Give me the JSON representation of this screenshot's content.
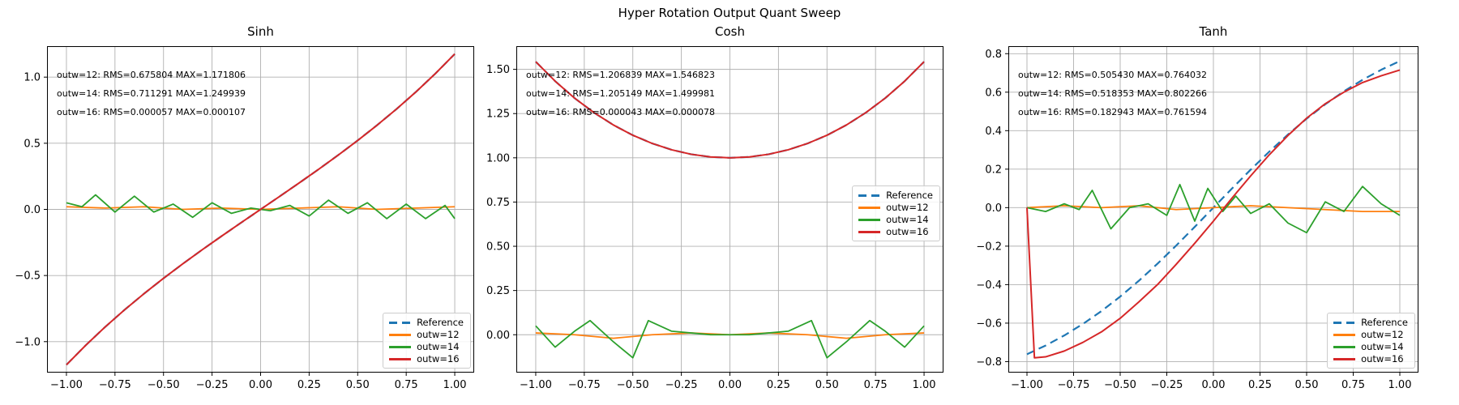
{
  "figure": {
    "suptitle": "Hyper Rotation Output Quant Sweep"
  },
  "colors": {
    "background": "#ffffff",
    "grid": "#b0b0b0",
    "axis": "#000000",
    "reference_blue": "#1f77b4",
    "outw12_orange": "#ff7f0e",
    "outw14_green": "#2ca02c",
    "outw16_red": "#d62728"
  },
  "chart_data": [
    {
      "type": "line",
      "title": "Sinh",
      "grid": true,
      "xlim": [
        -1.1,
        1.1
      ],
      "ylim": [
        -1.234,
        1.234
      ],
      "xticks": {
        "values": [
          -1.0,
          -0.75,
          -0.5,
          -0.25,
          0.0,
          0.25,
          0.5,
          0.75,
          1.0
        ],
        "labels": [
          "−1.00",
          "−0.75",
          "−0.50",
          "−0.25",
          "0.00",
          "0.25",
          "0.50",
          "0.75",
          "1.00"
        ]
      },
      "yticks": {
        "values": [
          -1.0,
          -0.5,
          0.0,
          0.5,
          1.0
        ],
        "labels": [
          "−1.0",
          "−0.5",
          "0.0",
          "0.5",
          "1.0"
        ]
      },
      "legend_loc": "lower right",
      "annotations": [
        "outw=12: RMS=0.675804 MAX=1.171806",
        "outw=14: RMS=0.711291 MAX=1.249939",
        "outw=16: RMS=0.000057 MAX=0.000107"
      ],
      "series": [
        {
          "name": "Reference",
          "color": "#1f77b4",
          "dashed": true,
          "width": 2.2,
          "x": [
            -1.0,
            -0.9,
            -0.8,
            -0.7,
            -0.6,
            -0.5,
            -0.4,
            -0.3,
            -0.2,
            -0.1,
            0.0,
            0.1,
            0.2,
            0.3,
            0.4,
            0.5,
            0.6,
            0.7,
            0.8,
            0.9,
            1.0
          ],
          "y": [
            -1.1752,
            -1.0265,
            -0.8881,
            -0.7586,
            -0.6367,
            -0.5211,
            -0.4108,
            -0.3045,
            -0.2013,
            -0.1002,
            0.0,
            0.1002,
            0.2013,
            0.3045,
            0.4108,
            0.5211,
            0.6367,
            0.7586,
            0.8881,
            1.0265,
            1.1752
          ]
        },
        {
          "name": "outw=12",
          "color": "#ff7f0e",
          "dashed": false,
          "width": 1.8,
          "x": [
            -1.0,
            -0.8,
            -0.6,
            -0.4,
            -0.2,
            0.0,
            0.2,
            0.4,
            0.6,
            0.8,
            1.0
          ],
          "y": [
            0.02,
            0.01,
            0.02,
            0.0,
            0.01,
            0.0,
            0.01,
            0.02,
            0.0,
            0.01,
            0.02
          ]
        },
        {
          "name": "outw=14",
          "color": "#2ca02c",
          "dashed": false,
          "width": 1.8,
          "x": [
            -1.0,
            -0.92,
            -0.85,
            -0.75,
            -0.65,
            -0.55,
            -0.45,
            -0.35,
            -0.25,
            -0.15,
            -0.05,
            0.05,
            0.15,
            0.25,
            0.35,
            0.45,
            0.55,
            0.65,
            0.75,
            0.85,
            0.95,
            1.0
          ],
          "y": [
            0.05,
            0.02,
            0.11,
            -0.02,
            0.1,
            -0.02,
            0.04,
            -0.06,
            0.05,
            -0.03,
            0.01,
            -0.01,
            0.03,
            -0.05,
            0.07,
            -0.03,
            0.05,
            -0.07,
            0.04,
            -0.07,
            0.03,
            -0.07
          ]
        },
        {
          "name": "outw=16",
          "color": "#d62728",
          "dashed": false,
          "width": 2.0,
          "x": [
            -1.0,
            -0.9,
            -0.8,
            -0.7,
            -0.6,
            -0.5,
            -0.4,
            -0.3,
            -0.2,
            -0.1,
            0.0,
            0.1,
            0.2,
            0.3,
            0.4,
            0.5,
            0.6,
            0.7,
            0.8,
            0.9,
            1.0
          ],
          "y": [
            -1.1752,
            -1.0265,
            -0.8881,
            -0.7586,
            -0.6367,
            -0.5211,
            -0.4108,
            -0.3045,
            -0.2013,
            -0.1002,
            0.0,
            0.1002,
            0.2013,
            0.3045,
            0.4108,
            0.5211,
            0.6367,
            0.7586,
            0.8881,
            1.0265,
            1.1752
          ]
        }
      ]
    },
    {
      "type": "line",
      "title": "Cosh",
      "grid": true,
      "xlim": [
        -1.1,
        1.1
      ],
      "ylim": [
        -0.214,
        1.631
      ],
      "xticks": {
        "values": [
          -1.0,
          -0.75,
          -0.5,
          -0.25,
          0.0,
          0.25,
          0.5,
          0.75,
          1.0
        ],
        "labels": [
          "−1.00",
          "−0.75",
          "−0.50",
          "−0.25",
          "0.00",
          "0.25",
          "0.50",
          "0.75",
          "1.00"
        ]
      },
      "yticks": {
        "values": [
          0.0,
          0.25,
          0.5,
          0.75,
          1.0,
          1.25,
          1.5
        ],
        "labels": [
          "0.00",
          "0.25",
          "0.50",
          "0.75",
          "1.00",
          "1.25",
          "1.50"
        ]
      },
      "legend_loc": "center right",
      "annotations": [
        "outw=12: RMS=1.206839 MAX=1.546823",
        "outw=14: RMS=1.205149 MAX=1.499981",
        "outw=16: RMS=0.000043 MAX=0.000078"
      ],
      "series": [
        {
          "name": "Reference",
          "color": "#1f77b4",
          "dashed": true,
          "width": 2.2,
          "x": [
            -1.0,
            -0.9,
            -0.8,
            -0.7,
            -0.6,
            -0.5,
            -0.4,
            -0.3,
            -0.2,
            -0.1,
            0.0,
            0.1,
            0.2,
            0.3,
            0.4,
            0.5,
            0.6,
            0.7,
            0.8,
            0.9,
            1.0
          ],
          "y": [
            1.5431,
            1.4331,
            1.3374,
            1.2552,
            1.1855,
            1.1276,
            1.0811,
            1.0453,
            1.0201,
            1.005,
            1.0,
            1.005,
            1.0201,
            1.0453,
            1.0811,
            1.1276,
            1.1855,
            1.2552,
            1.3374,
            1.4331,
            1.5431
          ]
        },
        {
          "name": "outw=12",
          "color": "#ff7f0e",
          "dashed": false,
          "width": 1.8,
          "x": [
            -1.0,
            -0.8,
            -0.6,
            -0.4,
            -0.2,
            0.0,
            0.2,
            0.4,
            0.6,
            0.8,
            1.0
          ],
          "y": [
            0.01,
            0.0,
            -0.02,
            0.0,
            0.01,
            0.0,
            0.01,
            0.0,
            -0.02,
            0.0,
            0.01
          ]
        },
        {
          "name": "outw=14",
          "color": "#2ca02c",
          "dashed": false,
          "width": 1.8,
          "x": [
            -1.0,
            -0.9,
            -0.8,
            -0.72,
            -0.6,
            -0.5,
            -0.42,
            -0.3,
            -0.2,
            -0.1,
            0.0,
            0.1,
            0.2,
            0.3,
            0.42,
            0.5,
            0.6,
            0.72,
            0.8,
            0.9,
            1.0
          ],
          "y": [
            0.05,
            -0.07,
            0.02,
            0.08,
            -0.04,
            -0.13,
            0.08,
            0.02,
            0.01,
            0.0,
            0.0,
            0.0,
            0.01,
            0.02,
            0.08,
            -0.13,
            -0.04,
            0.08,
            0.02,
            -0.07,
            0.05
          ]
        },
        {
          "name": "outw=16",
          "color": "#d62728",
          "dashed": false,
          "width": 2.0,
          "x": [
            -1.0,
            -0.9,
            -0.8,
            -0.7,
            -0.6,
            -0.5,
            -0.4,
            -0.3,
            -0.2,
            -0.1,
            0.0,
            0.1,
            0.2,
            0.3,
            0.4,
            0.5,
            0.6,
            0.7,
            0.8,
            0.9,
            1.0
          ],
          "y": [
            1.5431,
            1.4331,
            1.3374,
            1.2552,
            1.1855,
            1.1276,
            1.0811,
            1.0453,
            1.0201,
            1.005,
            1.0,
            1.005,
            1.0201,
            1.0453,
            1.0811,
            1.1276,
            1.1855,
            1.2552,
            1.3374,
            1.4331,
            1.5431
          ]
        }
      ]
    },
    {
      "type": "line",
      "title": "Tanh",
      "grid": true,
      "xlim": [
        -1.1,
        1.1
      ],
      "ylim": [
        -0.857,
        0.839
      ],
      "xticks": {
        "values": [
          -1.0,
          -0.75,
          -0.5,
          -0.25,
          0.0,
          0.25,
          0.5,
          0.75,
          1.0
        ],
        "labels": [
          "−1.00",
          "−0.75",
          "−0.50",
          "−0.25",
          "0.00",
          "0.25",
          "0.50",
          "0.75",
          "1.00"
        ]
      },
      "yticks": {
        "values": [
          -0.8,
          -0.6,
          -0.4,
          -0.2,
          0.0,
          0.2,
          0.4,
          0.6,
          0.8
        ],
        "labels": [
          "−0.8",
          "−0.6",
          "−0.4",
          "−0.2",
          "0.0",
          "0.2",
          "0.4",
          "0.6",
          "0.8"
        ]
      },
      "legend_loc": "lower right",
      "annotations": [
        "outw=12: RMS=0.505430 MAX=0.764032",
        "outw=14: RMS=0.518353 MAX=0.802266",
        "outw=16: RMS=0.182943 MAX=0.761594"
      ],
      "series": [
        {
          "name": "Reference",
          "color": "#1f77b4",
          "dashed": true,
          "width": 2.2,
          "x": [
            -1.0,
            -0.9,
            -0.8,
            -0.7,
            -0.6,
            -0.5,
            -0.4,
            -0.3,
            -0.2,
            -0.1,
            0.0,
            0.1,
            0.2,
            0.3,
            0.4,
            0.5,
            0.6,
            0.7,
            0.8,
            0.9,
            1.0
          ],
          "y": [
            -0.7616,
            -0.7163,
            -0.664,
            -0.6044,
            -0.537,
            -0.4621,
            -0.3799,
            -0.2913,
            -0.1974,
            -0.0997,
            0.0,
            0.0997,
            0.1974,
            0.2913,
            0.3799,
            0.4621,
            0.537,
            0.6044,
            0.664,
            0.7163,
            0.7616
          ]
        },
        {
          "name": "outw=12",
          "color": "#ff7f0e",
          "dashed": false,
          "width": 1.8,
          "x": [
            -1.0,
            -0.8,
            -0.6,
            -0.4,
            -0.2,
            0.0,
            0.2,
            0.4,
            0.6,
            0.8,
            1.0
          ],
          "y": [
            0.0,
            0.01,
            0.0,
            0.01,
            -0.01,
            0.0,
            0.01,
            0.0,
            -0.01,
            -0.02,
            -0.02
          ]
        },
        {
          "name": "outw=14",
          "color": "#2ca02c",
          "dashed": false,
          "width": 1.8,
          "x": [
            -1.0,
            -0.9,
            -0.8,
            -0.72,
            -0.65,
            -0.55,
            -0.45,
            -0.35,
            -0.25,
            -0.18,
            -0.1,
            -0.03,
            0.05,
            0.12,
            0.2,
            0.3,
            0.4,
            0.5,
            0.6,
            0.7,
            0.8,
            0.9,
            1.0
          ],
          "y": [
            0.0,
            -0.02,
            0.02,
            -0.01,
            0.09,
            -0.11,
            0.0,
            0.02,
            -0.04,
            0.12,
            -0.07,
            0.1,
            -0.02,
            0.06,
            -0.03,
            0.02,
            -0.08,
            -0.13,
            0.03,
            -0.02,
            0.11,
            0.02,
            -0.04
          ]
        },
        {
          "name": "outw=16",
          "color": "#d62728",
          "dashed": false,
          "width": 2.0,
          "x": [
            -1.0,
            -0.96,
            -0.9,
            -0.8,
            -0.7,
            -0.6,
            -0.5,
            -0.4,
            -0.3,
            -0.2,
            -0.1,
            0.0,
            0.1,
            0.2,
            0.3,
            0.4,
            0.5,
            0.6,
            0.7,
            0.8,
            0.9,
            1.0
          ],
          "y": [
            0.0,
            -0.78,
            -0.775,
            -0.745,
            -0.7,
            -0.645,
            -0.575,
            -0.49,
            -0.4,
            -0.295,
            -0.185,
            -0.07,
            0.05,
            0.165,
            0.275,
            0.375,
            0.465,
            0.54,
            0.6,
            0.65,
            0.685,
            0.715
          ]
        }
      ]
    }
  ]
}
